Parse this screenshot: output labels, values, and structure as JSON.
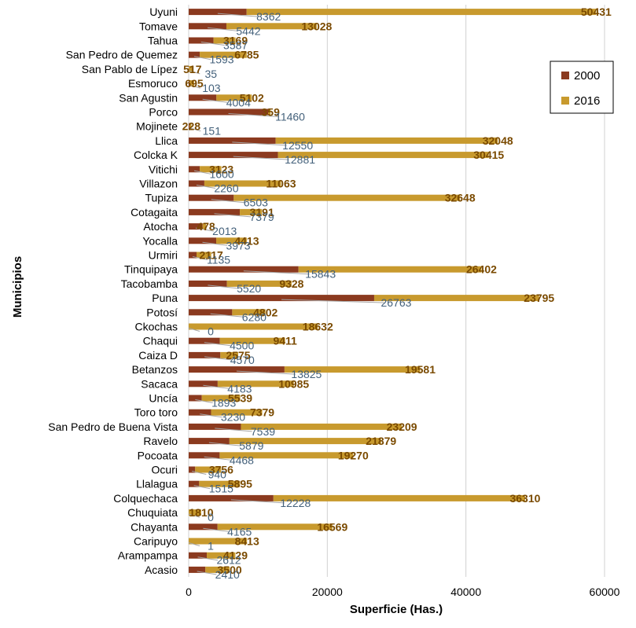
{
  "colors": {
    "s2000": "#8B3A1F",
    "s2016": "#C89A2E",
    "grid": "#d0d0d0",
    "leader": "#a6a6a6"
  },
  "chart_data": {
    "type": "bar",
    "orientation": "horizontal",
    "stacked": true,
    "xlabel": "Superficie (Has.)",
    "ylabel": "Municipios",
    "xlim": [
      0,
      60000
    ],
    "xticks": [
      "0",
      "20000",
      "40000",
      "60000"
    ],
    "grid": true,
    "legend": "right",
    "categories": [
      "Uyuni",
      "Tomave",
      "Tahua",
      "San Pedro de Quemez",
      "San Pablo de Lípez",
      "Esmoruco",
      "San Agustin",
      "Porco",
      "Mojinete",
      "Llica",
      "Colcka K",
      "Vitichi",
      "Villazon",
      "Tupiza",
      "Cotagaita",
      "Atocha",
      "Yocalla",
      "Urmiri",
      "Tinquipaya",
      "Tacobamba",
      "Puna",
      "Potosí",
      "Ckochas",
      "Chaqui",
      "Caiza D",
      "Betanzos",
      "Sacaca",
      "Uncía",
      "Toro toro",
      "San Pedro de Buena Vista",
      "Ravelo",
      "Pocoata",
      "Ocuri",
      "Llalagua",
      "Colquechaca",
      "Chuquiata",
      "Chayanta",
      "Caripuyo",
      "Arampampa",
      "Acasio"
    ],
    "series": [
      {
        "name": "2000",
        "values": [
          8362,
          5442,
          3587,
          1593,
          35,
          103,
          4004,
          11460,
          151,
          12550,
          12881,
          1600,
          2260,
          6503,
          7379,
          2013,
          3973,
          1135,
          15843,
          5520,
          26763,
          6280,
          0,
          4500,
          4570,
          13825,
          4183,
          1893,
          3230,
          7539,
          5879,
          4468,
          940,
          1515,
          12228,
          0,
          4165,
          1,
          2612,
          2410
        ]
      },
      {
        "name": "2016",
        "values": [
          50431,
          13028,
          3169,
          6785,
          517,
          695,
          5102,
          359,
          228,
          32048,
          30415,
          3123,
          11063,
          32648,
          3191,
          478,
          4413,
          2117,
          26402,
          9328,
          23795,
          4802,
          18632,
          9411,
          2575,
          19581,
          10985,
          5539,
          7379,
          23209,
          21879,
          19270,
          3756,
          5895,
          36310,
          1810,
          16569,
          8413,
          4129,
          3500
        ]
      }
    ]
  }
}
